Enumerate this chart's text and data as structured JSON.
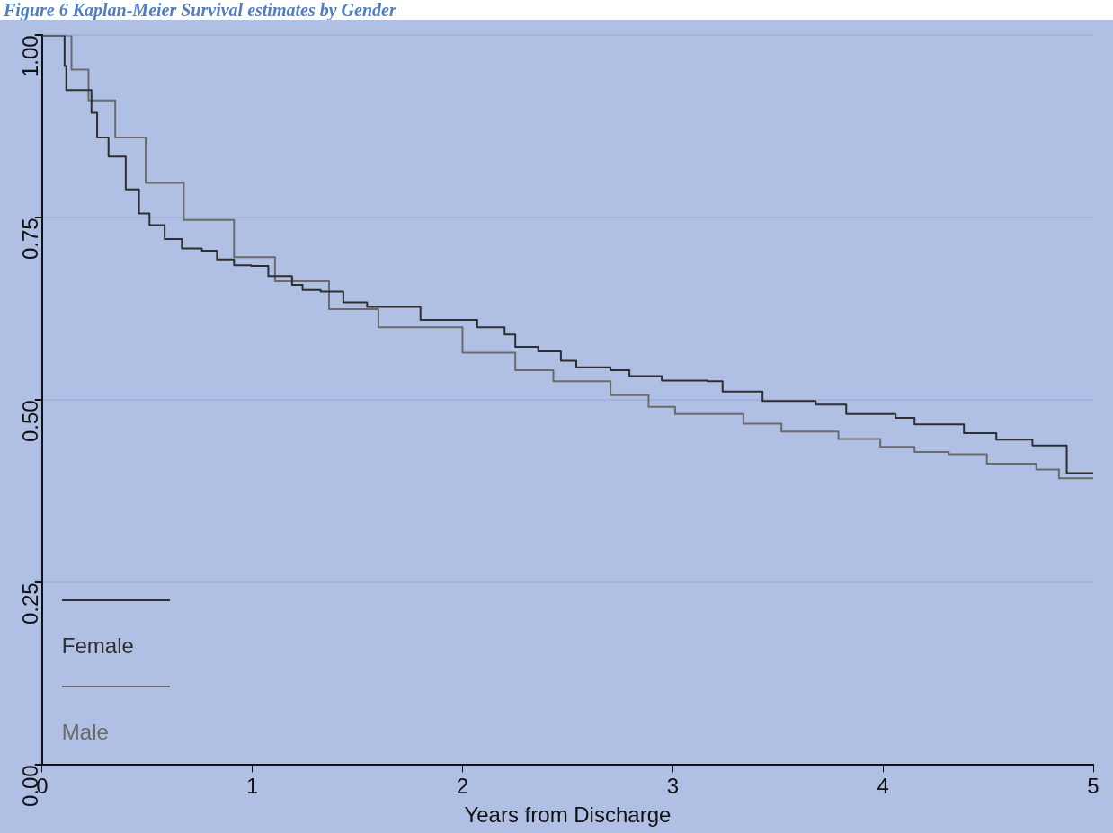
{
  "chart_data": {
    "type": "step",
    "title": "Figure 6 Kaplan-Meier Survival estimates by Gender",
    "xlabel": "Years from Discharge",
    "xlim": [
      0,
      5
    ],
    "xticks": [
      0,
      1,
      2,
      3,
      4,
      5
    ],
    "ylim": [
      0,
      1
    ],
    "yticks": [
      {
        "value": 0,
        "label": "0.00"
      },
      {
        "value": 0.25,
        "label": "0.25"
      },
      {
        "value": 0.5,
        "label": "0.50"
      },
      {
        "value": 0.75,
        "label": "0.75"
      },
      {
        "value": 1,
        "label": "1.00"
      }
    ],
    "grid": "y",
    "legend": "bottom left",
    "marker": "none",
    "line_style": "solid",
    "series": [
      {
        "name": "Female",
        "color": "#2e2e2e",
        "x": [
          0,
          0.107,
          0.115,
          0.235,
          0.262,
          0.316,
          0.398,
          0.461,
          0.511,
          0.583,
          0.665,
          0.76,
          0.832,
          0.913,
          0.995,
          1.076,
          1.189,
          1.239,
          1.325,
          1.433,
          1.546,
          1.8,
          2.07,
          2.2,
          2.251,
          2.36,
          2.468,
          2.541,
          2.704,
          2.794,
          2.948,
          3.165,
          3.237,
          3.427,
          3.68,
          3.825,
          4.06,
          4.15,
          4.385,
          4.539,
          4.711,
          4.874,
          5.0
        ],
        "values": [
          1,
          0.958,
          0.925,
          0.894,
          0.86,
          0.834,
          0.789,
          0.756,
          0.74,
          0.721,
          0.708,
          0.705,
          0.693,
          0.685,
          0.684,
          0.67,
          0.658,
          0.651,
          0.649,
          0.634,
          0.628,
          0.61,
          0.6,
          0.59,
          0.573,
          0.567,
          0.554,
          0.545,
          0.541,
          0.533,
          0.527,
          0.526,
          0.512,
          0.499,
          0.494,
          0.481,
          0.476,
          0.467,
          0.455,
          0.446,
          0.438,
          0.4,
          0.4
        ]
      },
      {
        "name": "Male",
        "color": "#6a6a6a",
        "x": [
          0,
          0.14,
          0.221,
          0.348,
          0.493,
          0.674,
          0.913,
          1.108,
          1.365,
          1.6,
          2.0,
          2.251,
          2.432,
          2.704,
          2.885,
          3.011,
          3.336,
          3.517,
          3.788,
          3.987,
          4.15,
          4.313,
          4.494,
          4.729,
          4.837,
          5.0
        ],
        "values": [
          1,
          0.953,
          0.911,
          0.86,
          0.798,
          0.747,
          0.696,
          0.663,
          0.625,
          0.6,
          0.565,
          0.541,
          0.526,
          0.507,
          0.491,
          0.481,
          0.468,
          0.457,
          0.447,
          0.436,
          0.429,
          0.426,
          0.413,
          0.405,
          0.393,
          0.393
        ]
      }
    ]
  }
}
